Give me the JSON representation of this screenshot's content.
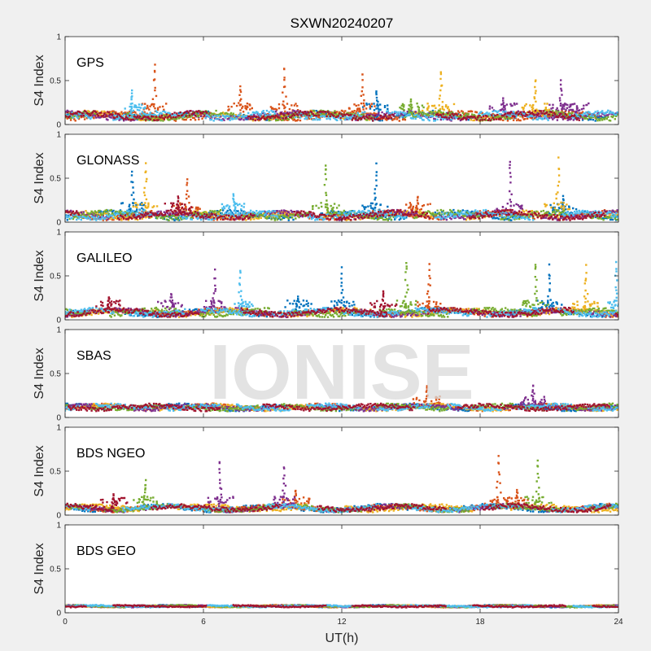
{
  "chart_data": {
    "type": "scatter",
    "title": "SXWN20240207",
    "watermark": "IONISE",
    "xlabel": "UT(h)",
    "xlim": [
      0,
      24
    ],
    "xticks": [
      0,
      6,
      12,
      18,
      24
    ],
    "grid": false,
    "series_colors": [
      "#0072BD",
      "#D95319",
      "#EDB120",
      "#7E2F8E",
      "#77AC30",
      "#4DBEEE",
      "#A2142F"
    ],
    "panels": [
      {
        "name": "GPS",
        "ylabel": "S4 Index",
        "ylim": [
          0,
          1
        ],
        "yticks": [
          "0",
          "0.5",
          "1"
        ],
        "baseline": [
          0.04,
          0.16
        ],
        "bursts": [
          {
            "x": 2.9,
            "peak": 0.4,
            "c": 5
          },
          {
            "x": 3.9,
            "peak": 0.76,
            "c": 1
          },
          {
            "x": 7.6,
            "peak": 0.44,
            "c": 1
          },
          {
            "x": 9.5,
            "peak": 0.72,
            "c": 1
          },
          {
            "x": 12.9,
            "peak": 0.62,
            "c": 1
          },
          {
            "x": 13.5,
            "peak": 0.42,
            "c": 0
          },
          {
            "x": 15.0,
            "peak": 0.3,
            "c": 4
          },
          {
            "x": 16.3,
            "peak": 0.66,
            "c": 2
          },
          {
            "x": 19.0,
            "peak": 0.3,
            "c": 3
          },
          {
            "x": 20.4,
            "peak": 0.55,
            "c": 2
          },
          {
            "x": 21.5,
            "peak": 0.52,
            "c": 3
          },
          {
            "x": 22.2,
            "peak": 0.22,
            "c": 3
          }
        ]
      },
      {
        "name": "GLONASS",
        "ylabel": "S4 Index",
        "ylim": [
          0,
          1
        ],
        "yticks": [
          "0",
          "0.5",
          "1"
        ],
        "baseline": [
          0.02,
          0.14
        ],
        "bursts": [
          {
            "x": 2.9,
            "peak": 0.62,
            "c": 0
          },
          {
            "x": 3.5,
            "peak": 0.72,
            "c": 2
          },
          {
            "x": 5.3,
            "peak": 0.52,
            "c": 1
          },
          {
            "x": 4.9,
            "peak": 0.3,
            "c": 6
          },
          {
            "x": 7.3,
            "peak": 0.34,
            "c": 5
          },
          {
            "x": 11.3,
            "peak": 0.74,
            "c": 4
          },
          {
            "x": 13.5,
            "peak": 0.7,
            "c": 0
          },
          {
            "x": 15.3,
            "peak": 0.3,
            "c": 1
          },
          {
            "x": 19.3,
            "peak": 0.79,
            "c": 3
          },
          {
            "x": 21.4,
            "peak": 0.75,
            "c": 2
          },
          {
            "x": 21.6,
            "peak": 0.3,
            "c": 0
          }
        ]
      },
      {
        "name": "GALILEO",
        "ylabel": "S4 Index",
        "ylim": [
          0,
          1
        ],
        "yticks": [
          "0",
          "0.5",
          "1"
        ],
        "baseline": [
          0.03,
          0.14
        ],
        "bursts": [
          {
            "x": 1.9,
            "peak": 0.28,
            "c": 6
          },
          {
            "x": 4.6,
            "peak": 0.33,
            "c": 3
          },
          {
            "x": 6.5,
            "peak": 0.58,
            "c": 3
          },
          {
            "x": 7.6,
            "peak": 0.6,
            "c": 5
          },
          {
            "x": 10.1,
            "peak": 0.28,
            "c": 0
          },
          {
            "x": 12.0,
            "peak": 0.6,
            "c": 0
          },
          {
            "x": 13.8,
            "peak": 0.34,
            "c": 6
          },
          {
            "x": 14.8,
            "peak": 0.73,
            "c": 4
          },
          {
            "x": 15.8,
            "peak": 0.69,
            "c": 1
          },
          {
            "x": 20.4,
            "peak": 0.72,
            "c": 4
          },
          {
            "x": 21.0,
            "peak": 0.63,
            "c": 0
          },
          {
            "x": 22.6,
            "peak": 0.63,
            "c": 2
          },
          {
            "x": 23.9,
            "peak": 0.68,
            "c": 5
          }
        ]
      },
      {
        "name": "SBAS",
        "ylabel": "S4 Index",
        "ylim": [
          0,
          1
        ],
        "yticks": [
          "0",
          "0.5",
          "1"
        ],
        "baseline": [
          0.07,
          0.16
        ],
        "bursts": [
          {
            "x": 15.7,
            "peak": 0.4,
            "c": 1
          },
          {
            "x": 20.3,
            "peak": 0.39,
            "c": 3
          }
        ]
      },
      {
        "name": "BDS NGEO",
        "ylabel": "S4 Index",
        "ylim": [
          0,
          1
        ],
        "yticks": [
          "0",
          "0.5",
          "1"
        ],
        "baseline": [
          0.03,
          0.13
        ],
        "bursts": [
          {
            "x": 2.1,
            "peak": 0.24,
            "c": 6
          },
          {
            "x": 3.5,
            "peak": 0.42,
            "c": 4
          },
          {
            "x": 6.7,
            "peak": 0.68,
            "c": 3
          },
          {
            "x": 9.5,
            "peak": 0.6,
            "c": 3
          },
          {
            "x": 10.0,
            "peak": 0.3,
            "c": 1
          },
          {
            "x": 18.8,
            "peak": 0.73,
            "c": 1
          },
          {
            "x": 20.5,
            "peak": 0.68,
            "c": 4
          },
          {
            "x": 19.6,
            "peak": 0.3,
            "c": 1
          }
        ]
      },
      {
        "name": "BDS GEO",
        "ylabel": "S4 Index",
        "ylim": [
          0,
          1
        ],
        "yticks": [
          "0",
          "0.5",
          "1"
        ],
        "baseline": [
          0.06,
          0.09
        ],
        "bursts": []
      }
    ]
  }
}
